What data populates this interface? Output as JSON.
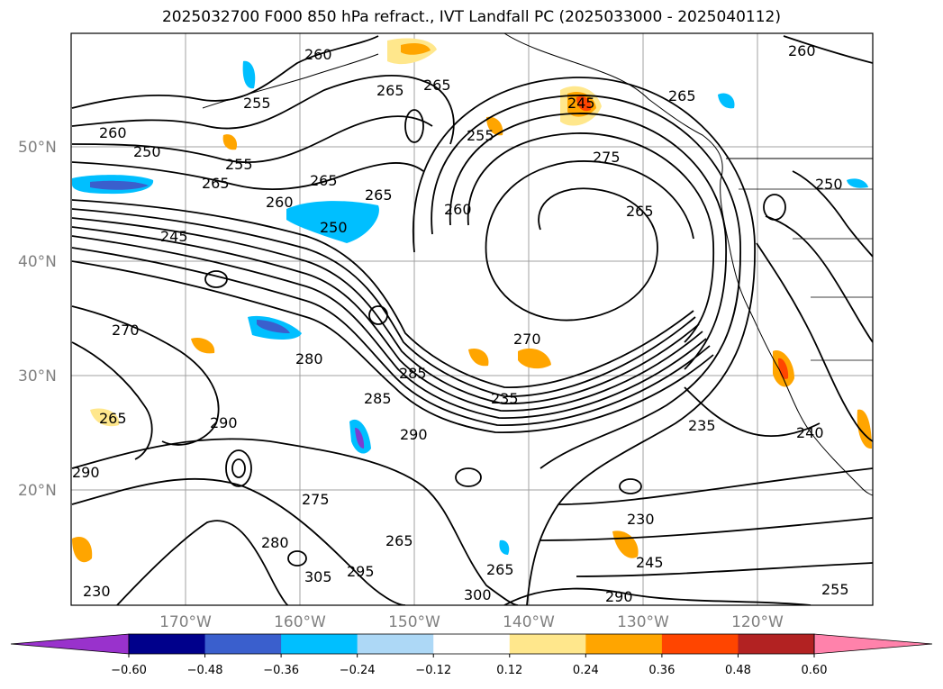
{
  "title": "2025032700 F000 850 hPa refract., IVT Landfall PC (2025033000 - 2025040112)",
  "map": {
    "lat_labels": [
      "50°N",
      "40°N",
      "30°N",
      "20°N"
    ],
    "lon_labels": [
      "170°W",
      "160°W",
      "150°W",
      "140°W",
      "130°W",
      "120°W"
    ],
    "contour_labels": [
      "260",
      "265",
      "255",
      "250",
      "245",
      "270",
      "275",
      "280",
      "285",
      "290",
      "235",
      "240",
      "230",
      "300",
      "305",
      "295"
    ],
    "contour_color": "#000000",
    "grid_color": "#808080"
  },
  "colorbar": {
    "ticks": [
      "−0.60",
      "−0.48",
      "−0.36",
      "−0.24",
      "−0.12",
      "0.12",
      "0.24",
      "0.36",
      "0.48",
      "0.60"
    ],
    "colors": [
      "#9932cc",
      "#00008b",
      "#3a5fcd",
      "#00bfff",
      "#add8f6",
      "#ffffff",
      "#ffe78c",
      "#ffa500",
      "#ff4500",
      "#b22222",
      "#ff82ab"
    ],
    "extend": "both"
  }
}
